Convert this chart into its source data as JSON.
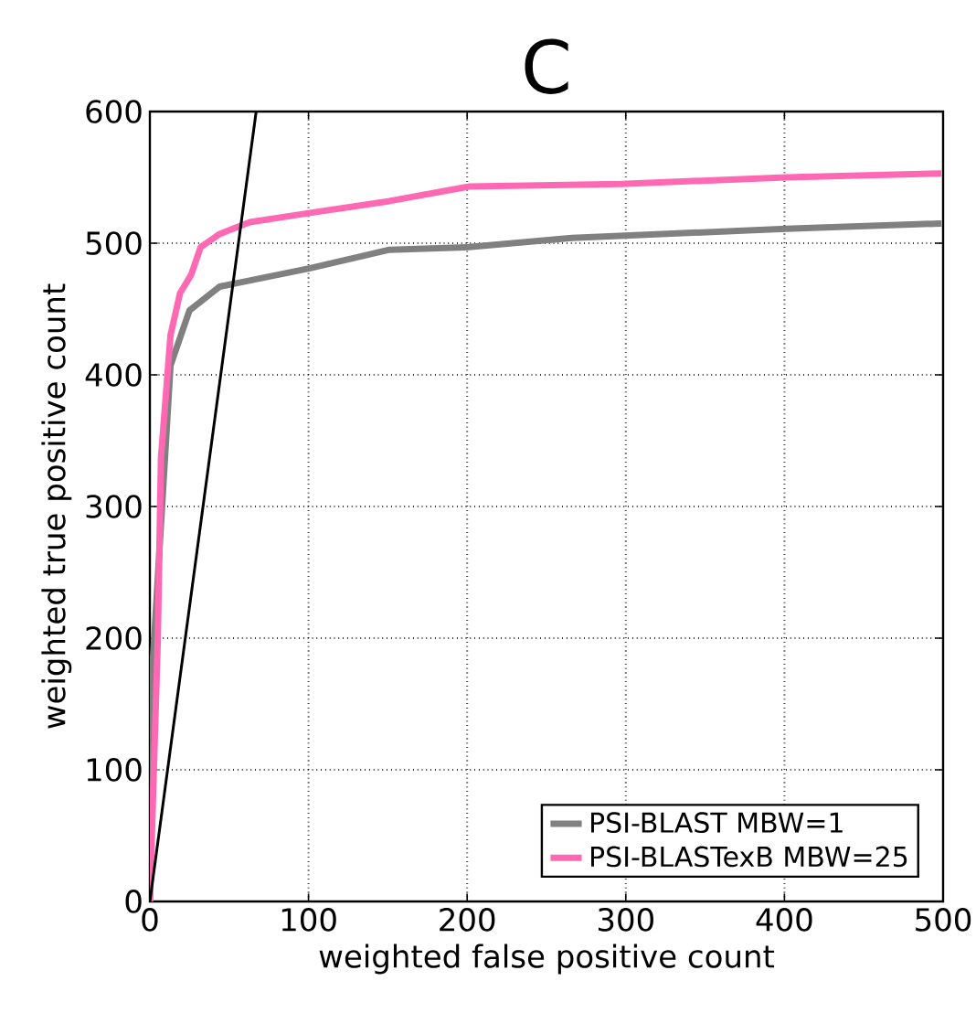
{
  "chart_data": {
    "type": "line",
    "title": "C",
    "xlabel": "weighted false positive count",
    "ylabel": "weighted true positive count",
    "xlim": [
      0,
      500
    ],
    "ylim": [
      0,
      600
    ],
    "xticks": [
      0,
      100,
      200,
      300,
      400,
      500
    ],
    "yticks": [
      0,
      100,
      200,
      300,
      400,
      500,
      600
    ],
    "grid": true,
    "legend": "bottom right",
    "series": [
      {
        "name": "PSI-BLAST MBW=1",
        "color": "#808080",
        "x": [
          0,
          1.5,
          7,
          13,
          25,
          44,
          101,
          151,
          201,
          266,
          401,
          499
        ],
        "values": [
          0,
          175,
          null,
          407,
          449,
          467,
          481,
          495,
          497,
          504,
          511,
          515
        ]
      },
      {
        "name": "PSI-BLASTexB MBW=25",
        "color": "#ff69b4",
        "x": [
          0,
          5,
          7,
          13,
          19,
          26,
          32,
          44,
          63,
          101,
          151,
          201,
          297,
          401,
          499
        ],
        "values": [
          0,
          199,
          337,
          430,
          462,
          476,
          497,
          507,
          516,
          523,
          532,
          543,
          545,
          550,
          553
        ]
      },
      {
        "color": "#000000",
        "x": [
          0,
          67
        ],
        "values": [
          0,
          600
        ]
      }
    ]
  }
}
